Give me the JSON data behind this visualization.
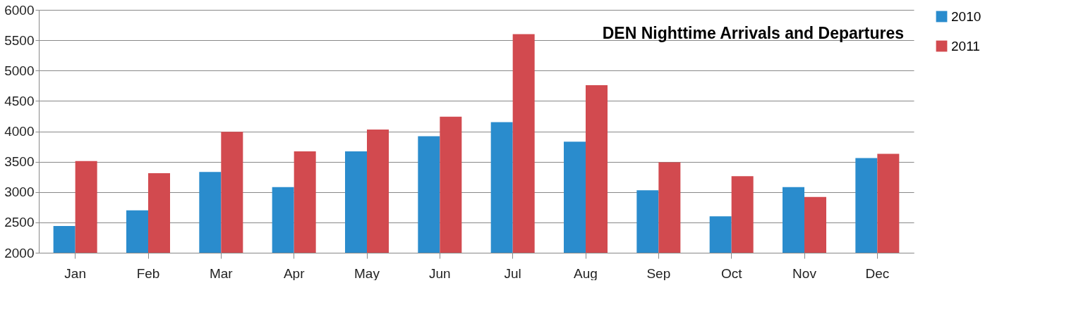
{
  "chart_data": {
    "type": "bar",
    "title": "DEN Nighttime Arrivals and Departures",
    "categories": [
      "Jan",
      "Feb",
      "Mar",
      "Apr",
      "May",
      "Jun",
      "Jul",
      "Aug",
      "Sep",
      "Oct",
      "Nov",
      "Dec"
    ],
    "series": [
      {
        "name": "2010",
        "color": "#2a8ccd",
        "values": [
          2440,
          2700,
          3330,
          3080,
          3670,
          3920,
          4150,
          3830,
          3030,
          2600,
          3080,
          3560
        ]
      },
      {
        "name": "2011",
        "color": "#d24a4f",
        "values": [
          3510,
          3310,
          3990,
          3670,
          4030,
          4240,
          5600,
          4760,
          3490,
          3260,
          2920,
          3630
        ]
      }
    ],
    "ylim": [
      2000,
      6000
    ],
    "yticks": [
      2000,
      2500,
      3000,
      3500,
      4000,
      4500,
      5000,
      5500,
      6000
    ],
    "grid": "y",
    "legend": "right"
  }
}
